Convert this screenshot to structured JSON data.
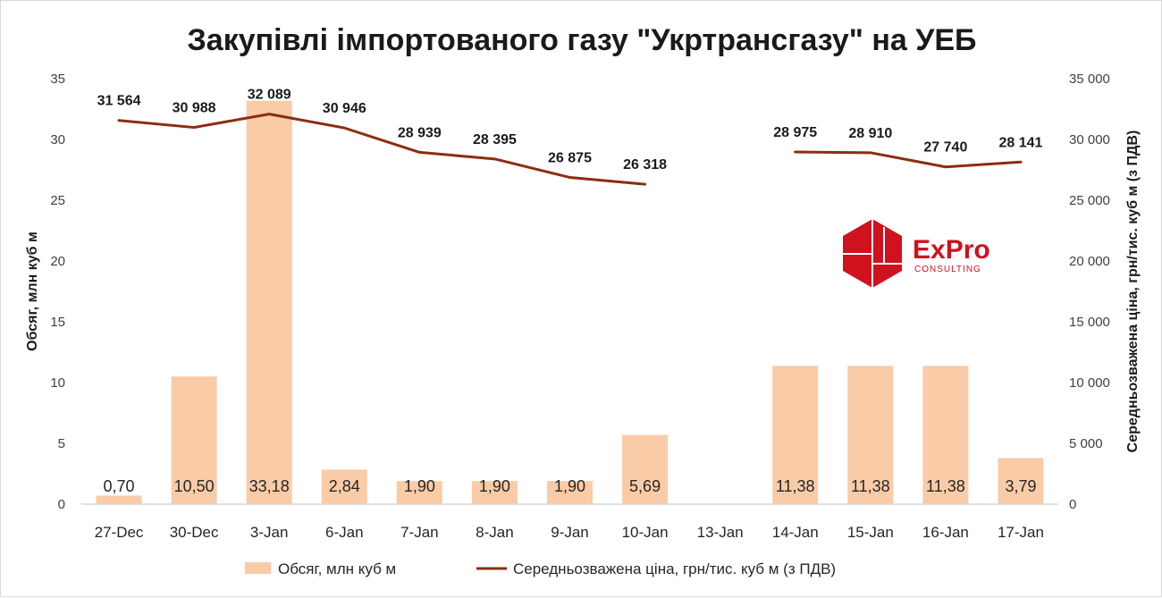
{
  "chart_data": {
    "type": "bar+line",
    "title": "Закупівлі імпортованого газу \"Укртрансгазу\" на УЕБ",
    "categories": [
      "27-Dec",
      "30-Dec",
      "3-Jan",
      "6-Jan",
      "7-Jan",
      "8-Jan",
      "9-Jan",
      "10-Jan",
      "13-Jan",
      "14-Jan",
      "15-Jan",
      "16-Jan",
      "17-Jan"
    ],
    "series": [
      {
        "name": "Обсяг, млн куб м",
        "type": "bar",
        "axis": "left",
        "color": "#f9cba7",
        "values": [
          0.7,
          10.5,
          33.18,
          2.84,
          1.9,
          1.9,
          1.9,
          5.69,
          null,
          11.38,
          11.38,
          11.38,
          3.79
        ],
        "labels": [
          "0,70",
          "10,50",
          "33,18",
          "2,84",
          "1,90",
          "1,90",
          "1,90",
          "5,69",
          "",
          "11,38",
          "11,38",
          "11,38",
          "3,79"
        ]
      },
      {
        "name": "Середньозважена ціна, грн/тис. куб м (з ПДВ)",
        "type": "line",
        "axis": "right",
        "color": "#8b2d10",
        "values": [
          31564,
          30988,
          32089,
          30946,
          28939,
          28395,
          26875,
          26318,
          null,
          28975,
          28910,
          27740,
          28141
        ],
        "labels": [
          "31 564",
          "30 988",
          "32 089",
          "30 946",
          "28 939",
          "28 395",
          "26 875",
          "26 318",
          "",
          "28 975",
          "28 910",
          "27 740",
          "28 141"
        ]
      }
    ],
    "y_left": {
      "label": "Обсяг, млн куб м",
      "min": 0,
      "max": 35,
      "ticks": [
        0,
        5,
        10,
        15,
        20,
        25,
        30,
        35
      ],
      "tick_labels": [
        "0",
        "5",
        "10",
        "15",
        "20",
        "25",
        "30",
        "35"
      ]
    },
    "y_right": {
      "label": "Середньозважена ціна, грн/тис. куб м (з ПДВ)",
      "min": 0,
      "max": 35000,
      "ticks": [
        0,
        5000,
        10000,
        15000,
        20000,
        25000,
        30000,
        35000
      ],
      "tick_labels": [
        "0",
        "5 000",
        "10 000",
        "15 000",
        "20 000",
        "25 000",
        "30 000",
        "35 000"
      ]
    },
    "grid": false,
    "legend": "bottom"
  },
  "logo": {
    "name": "ExPro",
    "subtitle": "CONSULTING",
    "color": "#d0121f"
  }
}
